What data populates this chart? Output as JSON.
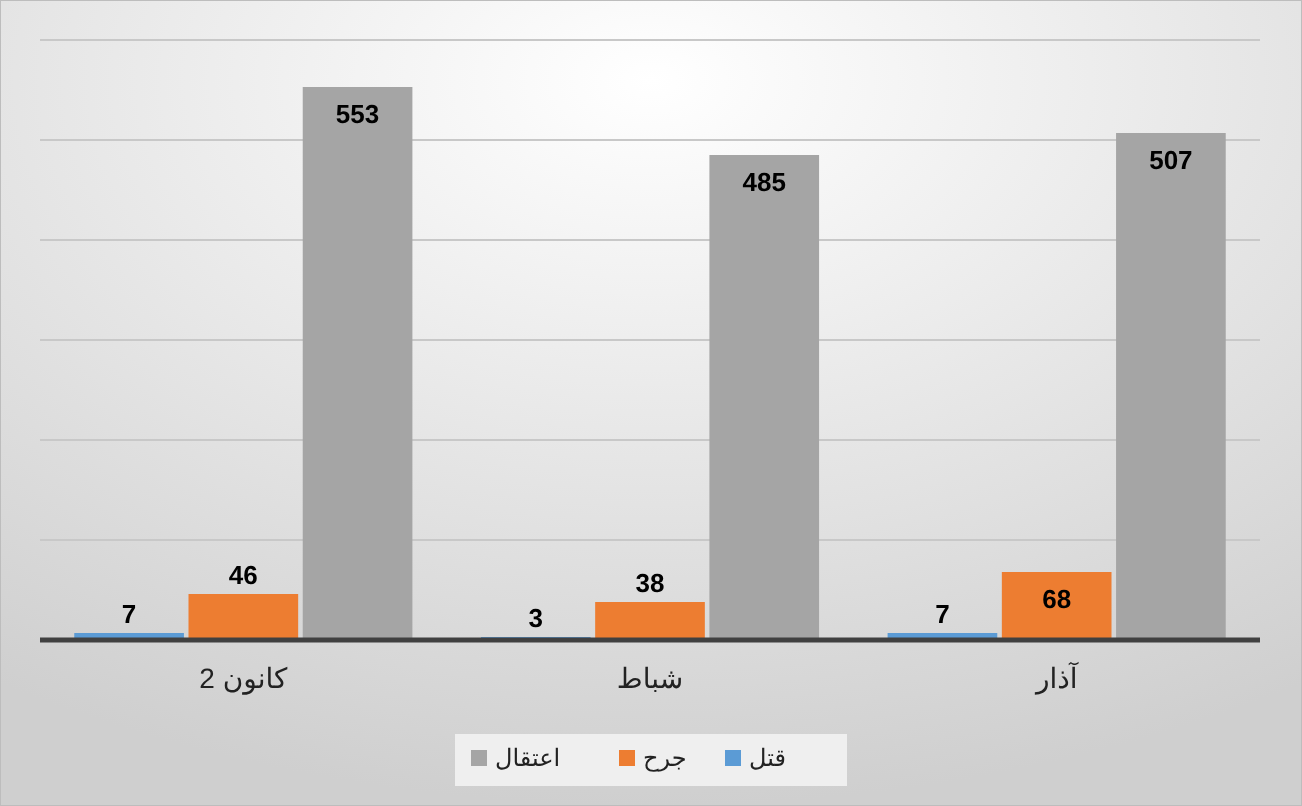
{
  "chart_data": {
    "type": "bar",
    "categories": [
      "كانون 2",
      "شباط",
      "آذار"
    ],
    "series": [
      {
        "name": "قتل",
        "color": "#5b9bd5",
        "values": [
          7,
          3,
          7
        ]
      },
      {
        "name": "جرح",
        "color": "#ed7d31",
        "values": [
          46,
          38,
          68
        ]
      },
      {
        "name": "اعتقال",
        "color": "#a5a5a5",
        "values": [
          553,
          485,
          507
        ]
      }
    ],
    "ylim": [
      0,
      600
    ],
    "yticks": [
      {
        "value": 0,
        "label": null
      },
      {
        "value": 100,
        "label": null
      },
      {
        "value": 200,
        "label": null
      },
      {
        "value": 300,
        "label": null
      },
      {
        "value": 400,
        "label": null
      },
      {
        "value": 500,
        "label": null
      },
      {
        "value": 600,
        "label": null
      }
    ],
    "tick_labels": "x",
    "grid": "y",
    "legend": "bottom",
    "data_labels": true
  }
}
